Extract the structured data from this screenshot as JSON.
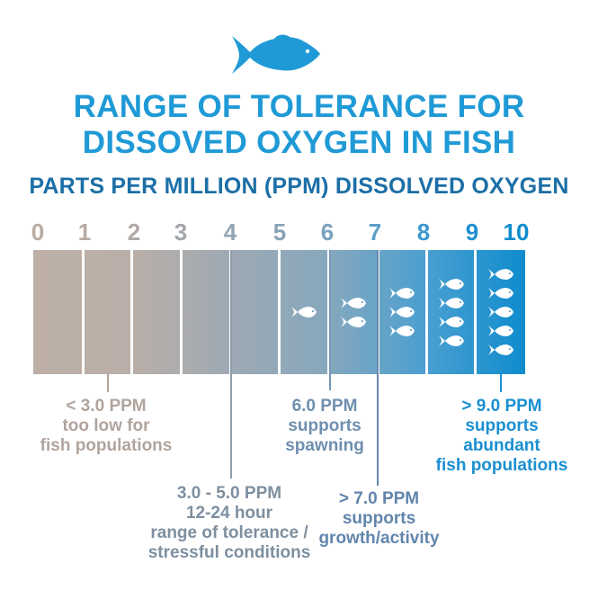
{
  "title": {
    "line1": "RANGE OF TOLERANCE FOR",
    "line2": "DISSOVED OXYGEN IN FISH"
  },
  "subtitle": "PARTS PER MILLION (PPM) DISSOLVED OXYGEN",
  "scale": {
    "ticks": [
      "0",
      "1",
      "2",
      "3",
      "4",
      "5",
      "6",
      "7",
      "8",
      "9",
      "10"
    ],
    "fish_per_segment": [
      0,
      0,
      0,
      0,
      0,
      1,
      2,
      3,
      4,
      5,
      5
    ]
  },
  "annotations": {
    "too_low": {
      "lines": [
        "< 3.0 PPM",
        "too low for",
        "fish populations"
      ],
      "color": "#b0a49d"
    },
    "tolerance": {
      "lines": [
        "3.0 - 5.0 PPM",
        "12-24 hour",
        "range of tolerance /",
        "stressful conditions"
      ],
      "color": "#7d8f9f"
    },
    "spawning": {
      "lines": [
        "6.0 PPM",
        "supports",
        "spawning"
      ],
      "color": "#6f8fae"
    },
    "growth": {
      "lines": [
        "> 7.0 PPM",
        "supports",
        "growth/activity"
      ],
      "color": "#6186ad"
    },
    "abundant": {
      "lines": [
        "> 9.0 PPM",
        "supports",
        "abundant",
        "fish populations"
      ],
      "color": "#1a8fd1"
    }
  },
  "colors": {
    "title": "#1f9ad6",
    "subtitle": "#1c6fa6",
    "fish_logo": "#1f9ad6",
    "school_fish": "#ffffff"
  }
}
